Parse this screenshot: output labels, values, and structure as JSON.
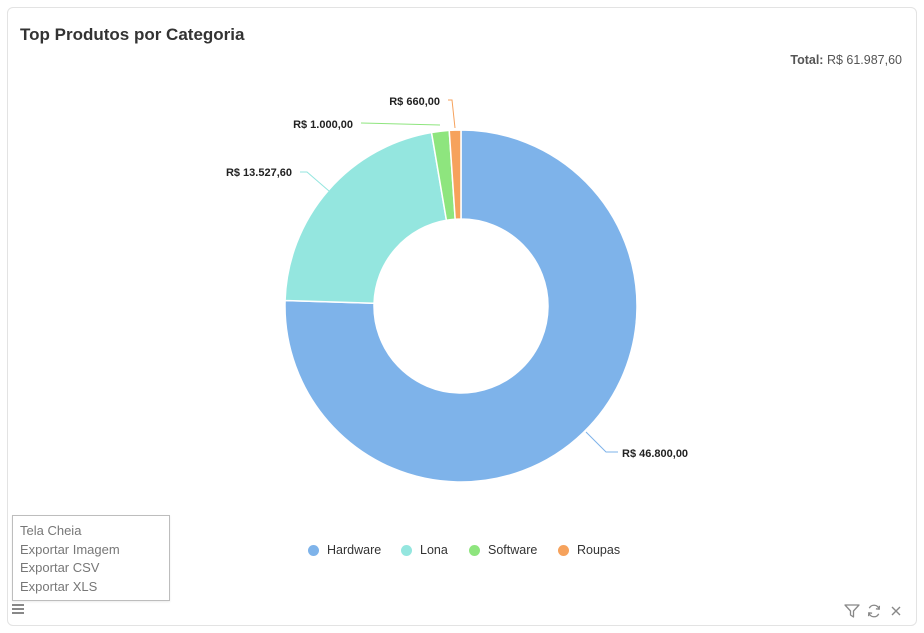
{
  "title": "Top Produtos por Categoria",
  "total": {
    "label": "Total:",
    "value": "R$ 61.987,60"
  },
  "chart_data": {
    "type": "pie",
    "variant": "donut",
    "categories": [
      "Hardware",
      "Lona",
      "Software",
      "Roupas"
    ],
    "values": [
      46800.0,
      13527.6,
      1000.0,
      660.0
    ],
    "data_labels": [
      "R$ 46.800,00",
      "R$ 13.527,60",
      "R$ 1.000,00",
      "R$ 660,00"
    ],
    "colors": [
      "#7eb3ea",
      "#94e6df",
      "#8ee57e",
      "#f6a25c"
    ],
    "legend_position": "bottom"
  },
  "menu": {
    "items": [
      "Tela Cheia",
      "Exportar Imagem",
      "Exportar CSV",
      "Exportar XLS"
    ]
  },
  "toolbar": {
    "icons": [
      "filter-icon",
      "refresh-icon",
      "close-icon"
    ]
  }
}
